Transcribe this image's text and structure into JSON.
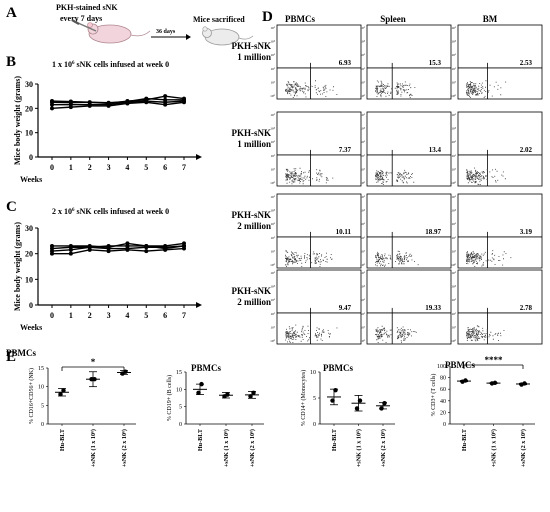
{
  "panels": {
    "A": "A",
    "B": "B",
    "C": "C",
    "D": "D",
    "E": "E"
  },
  "panel_a": {
    "stain_line1": "PKH-stained sNK",
    "stain_line2": "every 7 days",
    "arrow_label": "36 days",
    "endpoint": "Mice sacrificed",
    "mouse_icon_1": "mouse-icon",
    "mouse_icon_2": "mouse-icon"
  },
  "colors": {
    "line": "#000000",
    "dot": "#3a3a3a",
    "arrow": "#000000"
  },
  "chart_data": [
    {
      "id": "weights_1M",
      "type": "line",
      "title": "1 x 10^6 sNK cells infused at week 0",
      "title_parts": {
        "prefix": "1 x 10",
        "sup": "6",
        "suffix": " sNK cells infused at week 0"
      },
      "xlabel": "Weeks",
      "ylabel": "Mice body weight (grams)",
      "x": [
        0,
        1,
        2,
        3,
        4,
        5,
        6,
        7
      ],
      "ylim": [
        0,
        30
      ],
      "yticks": [
        0,
        10,
        20,
        30
      ],
      "series": [
        {
          "values": [
            23.0,
            22.8,
            22.5,
            22.0,
            23.0,
            23.5,
            25.0,
            24.0
          ]
        },
        {
          "values": [
            22.5,
            22.3,
            22.5,
            22.3,
            22.8,
            24.0,
            23.5,
            23.5
          ]
        },
        {
          "values": [
            21.5,
            21.5,
            21.5,
            21.5,
            22.5,
            23.0,
            22.5,
            23.0
          ]
        },
        {
          "values": [
            20.0,
            20.5,
            21.0,
            21.0,
            22.0,
            22.5,
            21.5,
            22.5
          ]
        }
      ]
    },
    {
      "id": "weights_2M",
      "type": "line",
      "title": "2 x 10^6 sNK cells infused at week 0",
      "title_parts": {
        "prefix": "2 x 10",
        "sup": "6",
        "suffix": " sNK cells infused at week 0"
      },
      "xlabel": "Weeks",
      "ylabel": "Mice body weight (grams)",
      "x": [
        0,
        1,
        2,
        3,
        4,
        5,
        6,
        7
      ],
      "ylim": [
        0,
        30
      ],
      "yticks": [
        0,
        10,
        20,
        30
      ],
      "series": [
        {
          "values": [
            23.0,
            23.0,
            23.0,
            22.5,
            24.0,
            23.0,
            23.0,
            24.0
          ]
        },
        {
          "values": [
            22.0,
            22.5,
            22.5,
            23.0,
            23.0,
            23.0,
            22.0,
            23.0
          ]
        },
        {
          "values": [
            21.0,
            21.5,
            22.5,
            22.0,
            22.0,
            22.5,
            22.5,
            23.0
          ]
        },
        {
          "values": [
            20.0,
            20.0,
            21.5,
            21.0,
            21.5,
            21.0,
            21.5,
            22.0
          ]
        }
      ]
    },
    {
      "id": "flow_grid",
      "type": "scatter",
      "columns": [
        "PBMCs",
        "Spleen",
        "BM"
      ],
      "rows": [
        {
          "label_line1": "PKH-sNK",
          "label_line2": "1 million",
          "values": [
            "6.93",
            "15.3",
            "2.53"
          ]
        },
        {
          "label_line1": "PKH-sNK",
          "label_line2": "1 million",
          "values": [
            "7.37",
            "13.4",
            "2.02"
          ]
        },
        {
          "label_line1": "PKH-sNK",
          "label_line2": "2 million",
          "values": [
            "10.11",
            "18.97",
            "3.19"
          ]
        },
        {
          "label_line1": "PKH-sNK",
          "label_line2": "2 million",
          "values": [
            "9.47",
            "19.33",
            "2.78"
          ]
        }
      ],
      "axis_tick_labels": [
        "10⁵",
        "10⁴",
        "10³",
        "10²",
        "10¹",
        "10⁰"
      ]
    },
    {
      "id": "nk",
      "type": "scatter",
      "title": "PBMCs",
      "ylabel": "% CD16+CD56+ (NK)",
      "categories": [
        "Hu-BLT",
        "+sNK (1 x 10⁶)",
        "+sNK (2 x 10⁶)"
      ],
      "points": [
        [
          8.0,
          9.0
        ],
        [
          12.0,
          12.0
        ],
        [
          13.5,
          14.0
        ]
      ],
      "means": [
        8.5,
        12.0,
        13.8
      ],
      "sd": [
        1.0,
        2.0,
        0.5
      ],
      "ylim": [
        0,
        15
      ],
      "yticks": [
        0,
        5,
        10,
        15
      ],
      "significance": "*"
    },
    {
      "id": "bcell",
      "type": "scatter",
      "title": "PBMCs",
      "ylabel": "% CD19+ (B cells)",
      "categories": [
        "Hu-BLT",
        "+sNK (1 x 10⁶)",
        "+sNK (2 x 10⁶)"
      ],
      "points": [
        [
          9.0,
          11.5
        ],
        [
          8.0,
          8.5
        ],
        [
          8.0,
          9.0
        ]
      ],
      "means": [
        10.0,
        8.3,
        8.4
      ],
      "sd": [
        1.5,
        0.8,
        1.0
      ],
      "ylim": [
        0,
        15
      ],
      "yticks": [
        0,
        5,
        10,
        15
      ]
    },
    {
      "id": "mono",
      "type": "scatter",
      "title": "PBMCs",
      "ylabel": "% CD14+ (Monocytes)",
      "categories": [
        "Hu-BLT",
        "+sNK (1 x 10⁶)",
        "+sNK (2 x 10⁶)"
      ],
      "points": [
        [
          4.5,
          6.5
        ],
        [
          3.0,
          4.5
        ],
        [
          3.0,
          4.0
        ]
      ],
      "means": [
        5.2,
        4.0,
        3.5
      ],
      "sd": [
        1.5,
        1.5,
        0.6
      ],
      "ylim": [
        0,
        10
      ],
      "yticks": [
        0,
        5,
        10
      ]
    },
    {
      "id": "tcell",
      "type": "scatter",
      "title": "PBMCs",
      "ylabel": "% CD3+ (T cells)",
      "categories": [
        "Hu-BLT",
        "+sNK (1 x 10⁶)",
        "+sNK (2 x 10⁶)"
      ],
      "points": [
        [
          73.0,
          75.0
        ],
        [
          70.0,
          71.0
        ],
        [
          68.0,
          70.0
        ]
      ],
      "means": [
        74.0,
        70.5,
        69.0
      ],
      "sd": [
        1.0,
        0.8,
        1.2
      ],
      "ylim": [
        0,
        100
      ],
      "yticks": [
        0,
        20,
        40,
        60,
        80,
        100
      ],
      "significance": "****"
    }
  ]
}
